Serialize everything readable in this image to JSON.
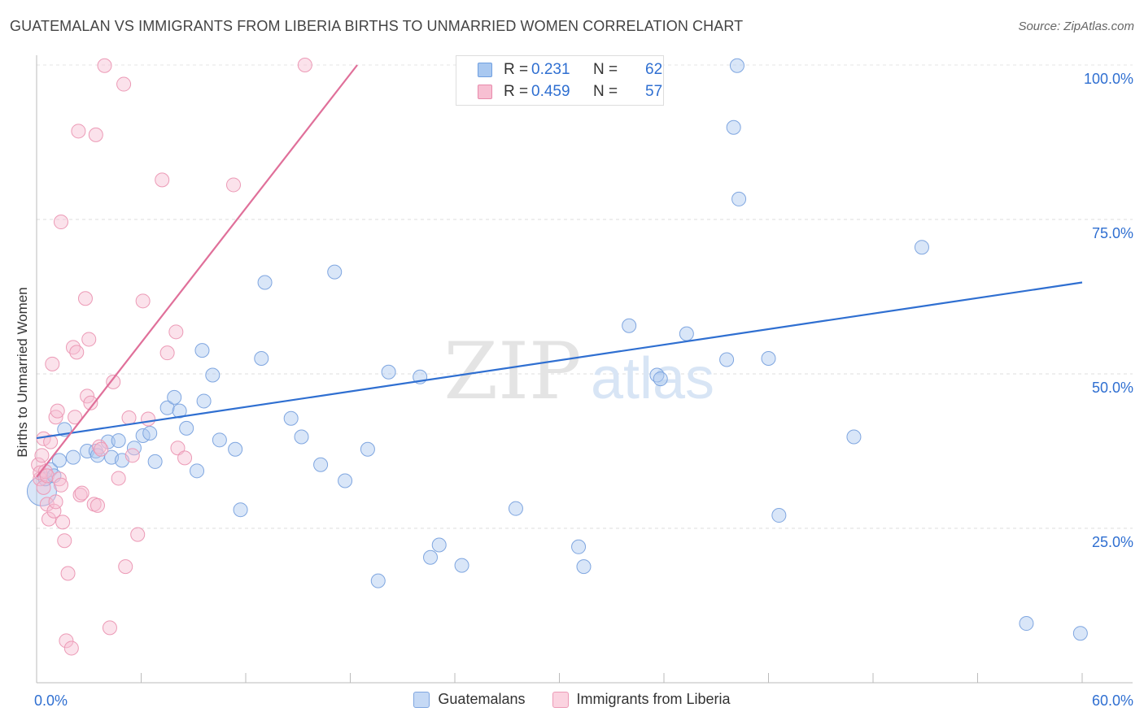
{
  "header": {
    "title": "GUATEMALAN VS IMMIGRANTS FROM LIBERIA BIRTHS TO UNMARRIED WOMEN CORRELATION CHART",
    "source": "Source: ZipAtlas.com"
  },
  "watermark": {
    "zip": "ZIP",
    "atlas": "atlas"
  },
  "stats": [
    {
      "r_label": "R =",
      "r_value": "0.231",
      "n_label": "N =",
      "n_value": "62",
      "color": "#a9c8f0",
      "border": "#6f9fe0"
    },
    {
      "r_label": "R =",
      "r_value": "0.459",
      "n_label": "N =",
      "n_value": "57",
      "color": "#f7bfd2",
      "border": "#e88aab"
    }
  ],
  "legend": [
    {
      "label": "Guatemalans",
      "color": "#c5d9f5",
      "border": "#7fa6e0"
    },
    {
      "label": "Immigrants from Liberia",
      "color": "#fbd3e0",
      "border": "#ec9ab6"
    }
  ],
  "chart_data": {
    "type": "scatter",
    "title": "GUATEMALAN VS IMMIGRANTS FROM LIBERIA BIRTHS TO UNMARRIED WOMEN CORRELATION CHART",
    "xlabel": "",
    "ylabel": "Births to Unmarried Women",
    "xlim": [
      0,
      60
    ],
    "ylim": [
      0,
      100
    ],
    "x_tick_labels": [
      "0.0%",
      "60.0%"
    ],
    "y_ticks": [
      25,
      50,
      75,
      100
    ],
    "y_tick_labels": [
      "25.0%",
      "50.0%",
      "75.0%",
      "100.0%"
    ],
    "grid": true,
    "legend_position": "bottom",
    "colors": {
      "Guatemalans": "#2f6fd1",
      "Immigrants from Liberia": "#e0709a"
    },
    "series": [
      {
        "name": "Guatemalans",
        "x": [
          0.3,
          0.5,
          0.8,
          1.0,
          1.3,
          1.6,
          2.1,
          2.9,
          3.4,
          3.5,
          4.1,
          4.3,
          4.7,
          4.9,
          5.6,
          6.1,
          6.5,
          6.8,
          7.5,
          7.9,
          8.2,
          8.6,
          9.2,
          9.6,
          10.1,
          10.5,
          11.4,
          11.7,
          12.9,
          13.1,
          14.6,
          15.2,
          16.3,
          17.1,
          17.7,
          19.0,
          19.6,
          20.2,
          22.6,
          24.4,
          27.5,
          31.1,
          31.4,
          34.0,
          35.6,
          35.8,
          37.3,
          39.6,
          40.0,
          40.3,
          40.2,
          42.0,
          42.6,
          46.9,
          50.8,
          56.8,
          59.9,
          22.0,
          23.1,
          28.0,
          31.8,
          9.5
        ],
        "y": [
          31.0,
          33.0,
          34.5,
          33.5,
          36.0,
          41.0,
          36.5,
          37.5,
          37.5,
          36.8,
          39.0,
          36.5,
          39.2,
          36.0,
          38.0,
          40.0,
          40.4,
          35.8,
          44.5,
          46.2,
          44.0,
          41.2,
          34.3,
          45.6,
          49.8,
          39.3,
          37.8,
          28.0,
          52.5,
          64.8,
          42.8,
          39.8,
          35.3,
          66.5,
          32.7,
          37.8,
          16.5,
          50.3,
          20.3,
          19.0,
          28.2,
          22.0,
          18.8,
          57.8,
          49.8,
          49.2,
          56.5,
          52.3,
          89.9,
          78.3,
          99.9,
          52.5,
          27.1,
          39.8,
          70.5,
          9.6,
          8.0,
          49.5,
          22.3,
          99.9,
          100.0,
          53.8
        ],
        "trend": {
          "x": [
            0,
            60
          ],
          "y": [
            39.6,
            64.8
          ]
        }
      },
      {
        "name": "Immigrants from Liberia",
        "x": [
          0.1,
          0.2,
          0.2,
          0.3,
          0.4,
          0.4,
          0.5,
          0.6,
          0.6,
          0.7,
          0.8,
          0.9,
          1.0,
          1.1,
          1.1,
          1.2,
          1.3,
          1.4,
          1.4,
          1.5,
          1.6,
          1.7,
          1.8,
          2.0,
          2.1,
          2.2,
          2.3,
          2.4,
          2.5,
          2.6,
          2.8,
          2.9,
          3.0,
          3.1,
          3.3,
          3.4,
          3.5,
          3.6,
          3.7,
          3.9,
          4.2,
          4.4,
          4.7,
          5.0,
          5.1,
          5.3,
          5.5,
          5.8,
          6.1,
          6.4,
          7.2,
          7.5,
          8.0,
          8.1,
          8.5,
          11.3,
          15.4
        ],
        "y": [
          35.3,
          33.0,
          34.0,
          36.8,
          39.5,
          31.6,
          34.2,
          33.5,
          28.9,
          26.5,
          39.0,
          51.6,
          27.8,
          43.0,
          29.3,
          44.0,
          33.0,
          74.6,
          32.0,
          26.0,
          23.0,
          6.8,
          17.7,
          5.6,
          54.3,
          43.0,
          53.5,
          89.3,
          30.4,
          30.7,
          62.2,
          46.4,
          55.6,
          45.3,
          28.9,
          88.7,
          28.7,
          38.2,
          37.8,
          99.9,
          8.9,
          48.7,
          33.1,
          96.9,
          18.8,
          42.9,
          36.8,
          24.0,
          61.8,
          42.7,
          81.4,
          53.4,
          56.8,
          38.0,
          36.4,
          80.6,
          100.0
        ],
        "trend": {
          "x": [
            0,
            18.4
          ],
          "y": [
            33.3,
            100.0
          ]
        }
      }
    ]
  }
}
